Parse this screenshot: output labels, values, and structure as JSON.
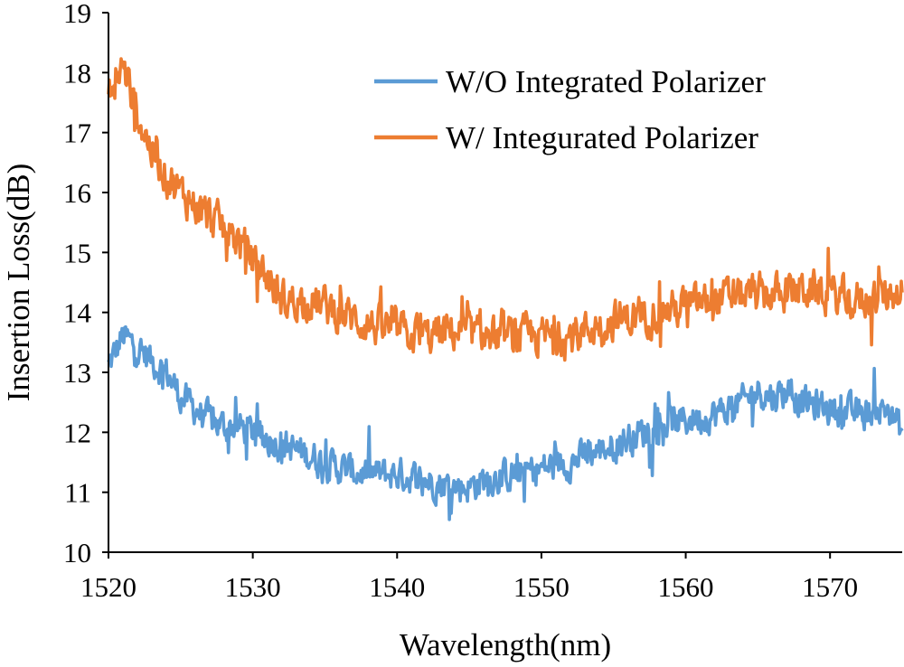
{
  "chart_data": {
    "type": "line",
    "xlabel": "Wavelength(nm)",
    "ylabel": "Insertion Loss(dB)",
    "xlim": [
      1520,
      1575
    ],
    "ylim": [
      10,
      19
    ],
    "xticks": [
      1520,
      1530,
      1540,
      1550,
      1560,
      1570
    ],
    "yticks": [
      10,
      11,
      12,
      13,
      14,
      15,
      16,
      17,
      18,
      19
    ],
    "grid": false,
    "legend_position": "top-right",
    "series": [
      {
        "name": "W/O Integrated Polarizer",
        "color": "#5b9bd5",
        "x": [
          1520,
          1521,
          1522,
          1523,
          1524,
          1525,
          1526,
          1527,
          1528,
          1529,
          1530,
          1532,
          1534,
          1536,
          1538,
          1540,
          1542,
          1544,
          1545,
          1546,
          1548,
          1550,
          1552,
          1554,
          1556,
          1558,
          1560,
          1562,
          1564,
          1565,
          1566,
          1567,
          1568,
          1570,
          1572,
          1574,
          1575
        ],
        "y": [
          13.1,
          13.6,
          13.4,
          13.2,
          13.0,
          12.6,
          12.4,
          12.2,
          12.1,
          12.1,
          12.0,
          11.8,
          11.6,
          11.4,
          11.3,
          11.3,
          11.2,
          11.1,
          11.1,
          11.2,
          11.3,
          11.4,
          11.5,
          11.7,
          11.9,
          12.1,
          12.2,
          12.3,
          12.5,
          12.7,
          12.6,
          12.7,
          12.5,
          12.4,
          12.3,
          12.4,
          12.0
        ]
      },
      {
        "name": "W/ Integurated Polarizer",
        "color": "#ed7d31",
        "x": [
          1520,
          1521,
          1522,
          1523,
          1524,
          1525,
          1526,
          1527,
          1528,
          1529,
          1530,
          1531,
          1532,
          1534,
          1536,
          1538,
          1540,
          1542,
          1544,
          1546,
          1548,
          1550,
          1552,
          1554,
          1556,
          1558,
          1560,
          1562,
          1564,
          1566,
          1568,
          1570,
          1572,
          1574,
          1575
        ],
        "y": [
          17.6,
          18.1,
          17.3,
          16.7,
          16.3,
          16.0,
          15.8,
          15.6,
          15.4,
          15.2,
          14.9,
          14.6,
          14.2,
          14.2,
          14.0,
          13.8,
          13.7,
          13.6,
          13.7,
          13.6,
          13.6,
          13.6,
          13.6,
          13.8,
          13.9,
          14.0,
          14.1,
          14.2,
          14.3,
          14.3,
          14.4,
          14.3,
          14.2,
          14.3,
          14.4
        ]
      }
    ]
  }
}
